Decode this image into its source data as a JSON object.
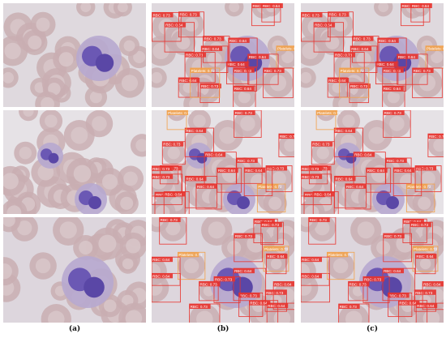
{
  "captions": [
    "(a)",
    "(b)",
    "(c)"
  ],
  "detection_label_examples": [
    "RBC: 0.64",
    "RBC: 0.73",
    "Platelets: 0.72",
    "RBC: 0.89"
  ],
  "colors": {
    "rbc_box": "#e8332e",
    "platelet_box": "#f2a14a",
    "label_text": "#ffffff",
    "background_smear": "#e9e6e8"
  }
}
